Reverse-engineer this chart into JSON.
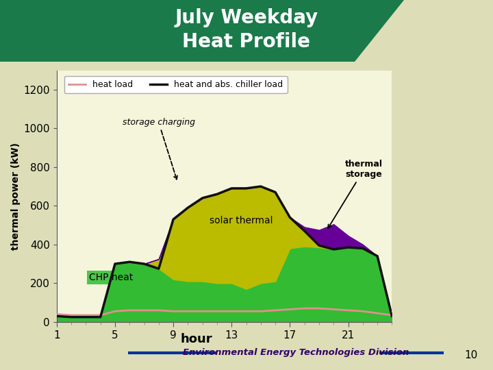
{
  "title": "July Weekday\nHeat Profile",
  "title_color": "white",
  "header_bg": "#1a7a4a",
  "slide_bg": "#ddddb8",
  "plot_bg": "#f5f5dc",
  "ylabel": "thermal power (kW)",
  "xlabel": "hour",
  "xlim": [
    1,
    24
  ],
  "ylim": [
    0,
    1300
  ],
  "yticks": [
    0,
    200,
    400,
    600,
    800,
    1000,
    1200
  ],
  "xticks": [
    1,
    5,
    9,
    13,
    17,
    21
  ],
  "hours": [
    1,
    2,
    3,
    4,
    5,
    6,
    7,
    8,
    9,
    10,
    11,
    12,
    13,
    14,
    15,
    16,
    17,
    18,
    19,
    20,
    21,
    22,
    23,
    24
  ],
  "chp_heat": [
    30,
    25,
    25,
    25,
    300,
    310,
    300,
    275,
    220,
    210,
    210,
    200,
    200,
    170,
    200,
    210,
    380,
    390,
    385,
    375,
    385,
    380,
    340,
    30
  ],
  "solar_thermal": [
    0,
    0,
    0,
    0,
    0,
    0,
    0,
    50,
    310,
    380,
    430,
    460,
    490,
    520,
    500,
    460,
    160,
    80,
    10,
    0,
    0,
    0,
    0,
    0
  ],
  "thermal_storage": [
    0,
    0,
    0,
    0,
    0,
    0,
    0,
    0,
    0,
    0,
    0,
    0,
    0,
    0,
    0,
    0,
    0,
    20,
    80,
    130,
    60,
    20,
    0,
    0
  ],
  "heat_load": [
    40,
    35,
    35,
    35,
    55,
    60,
    60,
    60,
    55,
    55,
    55,
    55,
    55,
    55,
    55,
    60,
    65,
    70,
    70,
    65,
    60,
    55,
    45,
    35
  ],
  "chiller_load": [
    30,
    25,
    25,
    25,
    300,
    310,
    300,
    275,
    530,
    590,
    640,
    660,
    690,
    690,
    700,
    670,
    540,
    470,
    395,
    375,
    385,
    380,
    340,
    30
  ],
  "chp_color": "#33bb33",
  "solar_color": "#bbbb00",
  "storage_color": "#660099",
  "heat_load_color": "#e09090",
  "chiller_load_color": "#111111",
  "footer_text": "Environmental Energy Technologies Division",
  "footer_text_color": "#330066",
  "footer_line_color": "#003399",
  "page_num": "10"
}
